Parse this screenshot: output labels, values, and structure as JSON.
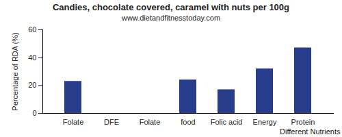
{
  "chart_data": {
    "type": "bar",
    "title": "Candies, chocolate covered, caramel with nuts per 100g",
    "subtitle": "www.dietandfitnesstoday.com",
    "x_label": "Different Nutrients",
    "y_label": "Percentage of RDA (%)",
    "categories": [
      "Folate",
      "DFE",
      "Folate",
      "food",
      "Folic acid",
      "Energy",
      "Protein"
    ],
    "values": [
      23,
      0,
      0,
      24,
      17,
      32,
      47
    ],
    "color": "#283c8c",
    "ylim": [
      0,
      60
    ],
    "yticks": [
      0,
      20,
      40,
      60
    ],
    "grid": false
  }
}
